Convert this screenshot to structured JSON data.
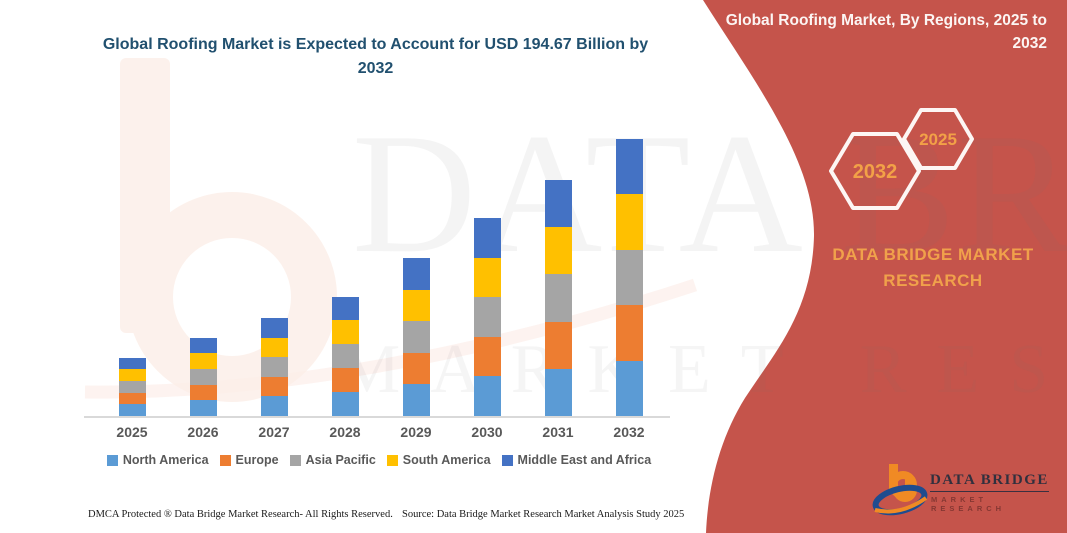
{
  "page": {
    "title": "Global Roofing Market is Expected to Account for USD 194.67 Billion by 2032",
    "footer_left": "DMCA Protected ® Data Bridge Market Research-  All Rights Reserved.",
    "footer_right": "Source: Data Bridge Market Research  Market Analysis Study 2025"
  },
  "right_panel": {
    "header": "Global Roofing Market, By Regions, 2025 to 2032",
    "panel_color": "#C5544B",
    "accent_color": "#F2A147",
    "hexagons": [
      {
        "label": "2032"
      },
      {
        "label": "2025"
      }
    ],
    "brand_text": "DATA BRIDGE MARKET RESEARCH",
    "logo_name": "DATA BRIDGE",
    "logo_sub": "MARKET RESEARCH",
    "logo_colors": {
      "orange": "#F08A24",
      "blue": "#1F4C8F"
    }
  },
  "watermark": {
    "line1": "DATA BRIDGE",
    "line2": "MARKET RESEARCH",
    "b_icon": "data-bridge-b-watermark"
  },
  "chart_data": {
    "type": "bar",
    "stacked": true,
    "title": "Global Roofing Market is Expected to Account for USD 194.67 Billion by 2032",
    "unit": "USD Billion",
    "categories": [
      "2025",
      "2026",
      "2027",
      "2028",
      "2029",
      "2030",
      "2031",
      "2032"
    ],
    "series": [
      {
        "name": "North America",
        "color": "#5B9BD5",
        "values": [
          8.2,
          11.0,
          13.8,
          16.8,
          22.2,
          27.8,
          33.2,
          38.93
        ]
      },
      {
        "name": "Europe",
        "color": "#ED7D31",
        "values": [
          8.2,
          11.0,
          13.8,
          16.8,
          22.2,
          27.8,
          33.2,
          38.93
        ]
      },
      {
        "name": "Asia Pacific",
        "color": "#A5A5A5",
        "values": [
          8.2,
          11.0,
          13.8,
          16.8,
          22.2,
          27.8,
          33.2,
          38.93
        ]
      },
      {
        "name": "South America",
        "color": "#FFC000",
        "values": [
          8.2,
          11.0,
          13.8,
          16.8,
          22.2,
          27.8,
          33.2,
          38.93
        ]
      },
      {
        "name": "Middle East and Africa",
        "color": "#4472C4",
        "values": [
          8.2,
          11.0,
          13.8,
          16.8,
          22.2,
          27.8,
          33.2,
          38.93
        ]
      }
    ],
    "totals": [
      41,
      55,
      69,
      84,
      111,
      139,
      166,
      194.67
    ],
    "ylim": [
      0,
      200
    ],
    "grid": false,
    "y_axis_visible": false,
    "legend_position": "bottom",
    "xlabel": "",
    "ylabel": ""
  }
}
